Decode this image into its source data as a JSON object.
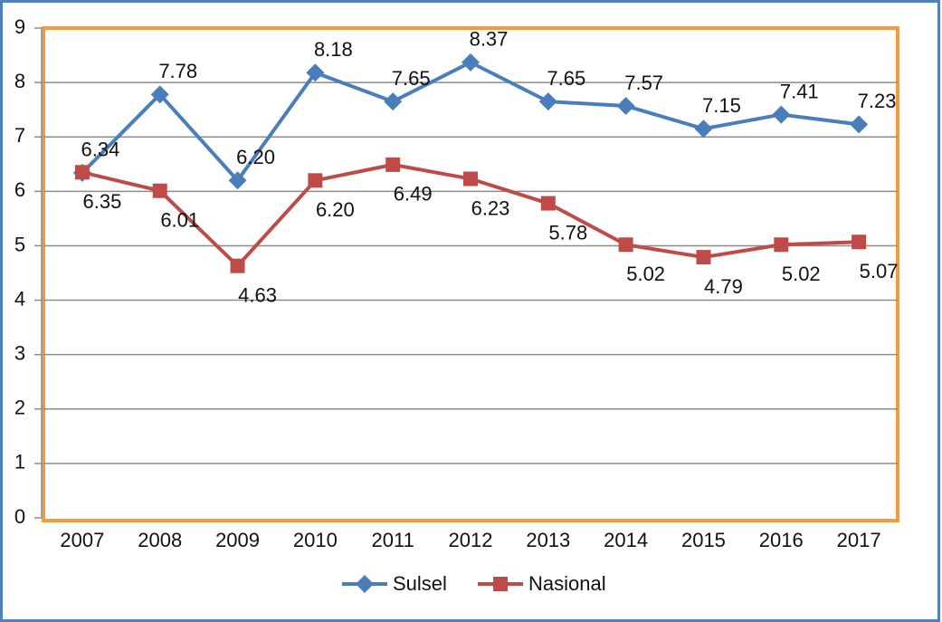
{
  "chart_data": {
    "type": "line",
    "categories": [
      "2007",
      "2008",
      "2009",
      "2010",
      "2011",
      "2012",
      "2013",
      "2014",
      "2015",
      "2016",
      "2017"
    ],
    "series": [
      {
        "name": "Sulsel",
        "color": "#4a7ebb",
        "marker": "diamond",
        "values": [
          6.34,
          7.78,
          6.2,
          8.18,
          7.65,
          8.37,
          7.65,
          7.57,
          7.15,
          7.41,
          7.23
        ],
        "value_labels": [
          "6.34",
          "7.78",
          "6.20",
          "8.18",
          "7.65",
          "8.37",
          "7.65",
          "7.57",
          "7.15",
          "7.41",
          "7.23"
        ]
      },
      {
        "name": "Nasional",
        "color": "#be4b48",
        "marker": "square",
        "values": [
          6.35,
          6.01,
          4.63,
          6.2,
          6.49,
          6.23,
          5.78,
          5.02,
          4.79,
          5.02,
          5.07
        ],
        "value_labels": [
          "6.35",
          "6.01",
          "4.63",
          "6.20",
          "6.49",
          "6.23",
          "5.78",
          "5.02",
          "4.79",
          "5.02",
          "5.07"
        ]
      }
    ],
    "ylim": [
      0,
      9
    ],
    "yticks": [
      0,
      1,
      2,
      3,
      4,
      5,
      6,
      7,
      8,
      9
    ],
    "grid": true,
    "legend": "bottom"
  }
}
